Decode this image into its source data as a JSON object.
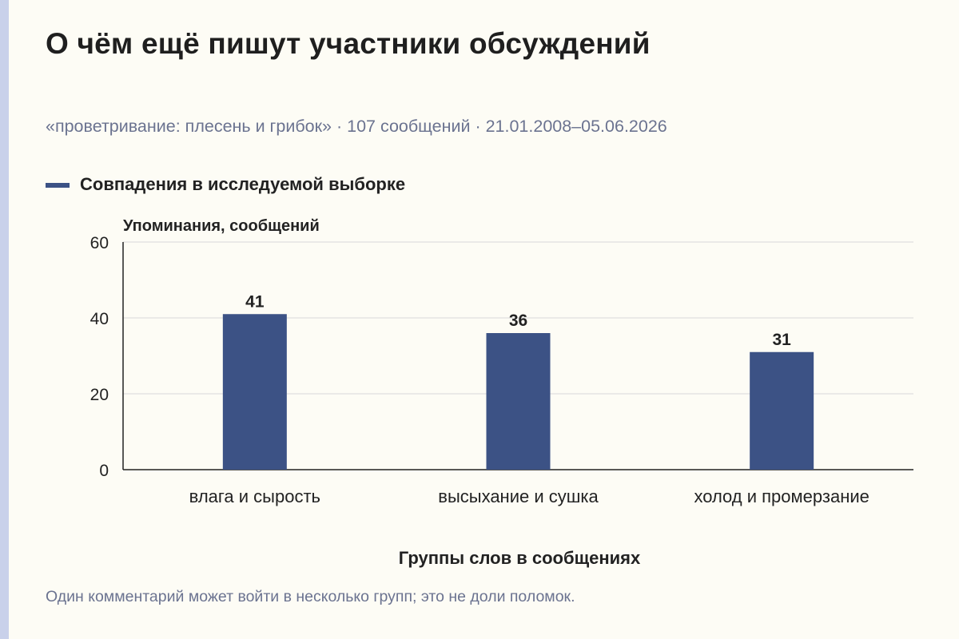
{
  "title": "О чём ещё пишут участники обсуждений",
  "subtitle": "«проветривание: плесень и грибок» · 107 сообщений · 21.01.2008–05.06.2026",
  "note": "Один комментарий может войти в несколько групп; это не доли поломок.",
  "colors": {
    "bar": "#3c5285",
    "grid": "#d9d9d9",
    "axis": "#222222",
    "muted": "#6b7390"
  },
  "chart_data": {
    "type": "bar",
    "categories": [
      "влага и сырость",
      "высыхание и сушка",
      "холод и промерзание"
    ],
    "series": [
      {
        "name": "Совпадения в исследуемой выборке",
        "values": [
          41,
          36,
          31
        ]
      }
    ],
    "ylabel": "Упоминания, сообщений",
    "xlabel": "Группы слов в сообщениях",
    "ylim": [
      0,
      60
    ],
    "yticks": [
      0,
      20,
      40,
      60
    ],
    "grid": true,
    "legend": "top-left",
    "data_labels": true
  }
}
